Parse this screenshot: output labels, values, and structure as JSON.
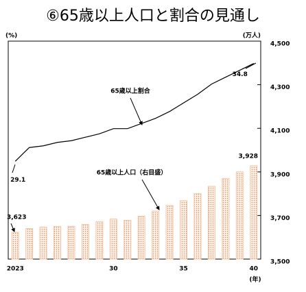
{
  "chart_data": {
    "type": "bar",
    "title": "⑥65歳以上人口と割合の見通し",
    "ylabel": "(%)",
    "y2label": "(万人)",
    "xlabel": "(年)",
    "categories": [
      "2023",
      null,
      null,
      null,
      null,
      null,
      null,
      "30",
      null,
      null,
      null,
      null,
      "35",
      null,
      null,
      null,
      null,
      "40"
    ],
    "series": [
      {
        "name": "65歳以上人口（右目盛）",
        "type": "bar",
        "axis": "y2",
        "color": "#f2c6a6",
        "values": [
          3623,
          3640,
          3647,
          3650,
          3650,
          3659,
          3672,
          3684,
          3678,
          3697,
          3720,
          3746,
          3768,
          3800,
          3834,
          3870,
          3900,
          3928
        ],
        "value_labels": [
          "3,623",
          null,
          null,
          null,
          null,
          null,
          null,
          null,
          null,
          null,
          null,
          null,
          null,
          null,
          null,
          null,
          null,
          "3,928"
        ]
      },
      {
        "name": "65歳以上割合",
        "type": "line",
        "color": "#000000",
        "values": [
          29.1,
          29.9,
          30.0,
          30.2,
          30.3,
          30.5,
          30.7,
          31.0,
          31.0,
          31.3,
          31.6,
          32.0,
          32.5,
          33.0,
          33.6,
          34.0,
          34.4,
          34.8
        ]
      }
    ],
    "ylim": [
      23.4,
      36.1
    ],
    "y2lim": [
      3500,
      4500
    ],
    "y2ticks": [
      {
        "value": 3500,
        "label": "3,500"
      },
      {
        "value": 3700,
        "label": "3,700"
      },
      {
        "value": 3900,
        "label": "3,900"
      },
      {
        "value": 4100,
        "label": "4,100"
      },
      {
        "value": 4300,
        "label": "4,300"
      },
      {
        "value": 4500,
        "label": "4,500"
      }
    ]
  }
}
